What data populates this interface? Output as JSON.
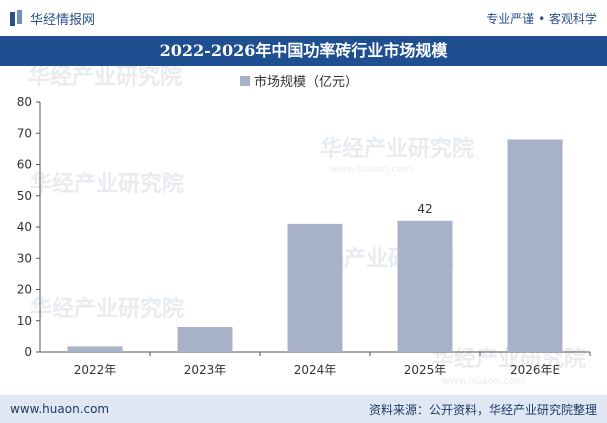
{
  "header": {
    "brand": "华经情报网",
    "slogan": "专业严谨 • 客观科学"
  },
  "footer": {
    "website": "www.huaon.com",
    "source": "资料来源：公开资料，华经产业研究院整理"
  },
  "watermark": {
    "cn": "华经产业研究院",
    "en": "www.huaon.com"
  },
  "colors": {
    "bar": "#a7b2c9",
    "title_bg": "#1f4e91",
    "footer_bg": "#dfe7f2"
  },
  "chart_data": {
    "type": "bar",
    "title": "2022-2026年中国功率砖行业市场规模",
    "categories": [
      "2022年",
      "2023年",
      "2024年",
      "2025年",
      "2026年E"
    ],
    "series": [
      {
        "name": "市场规模（亿元）",
        "values": [
          1.8,
          8,
          41,
          42,
          68
        ]
      }
    ],
    "data_labels": {
      "3": "42"
    },
    "yticks": [
      "0",
      "10",
      "20",
      "30",
      "40",
      "50",
      "60",
      "70",
      "80"
    ],
    "ylim": [
      0,
      80
    ],
    "grid": false,
    "legend": "top-center"
  }
}
